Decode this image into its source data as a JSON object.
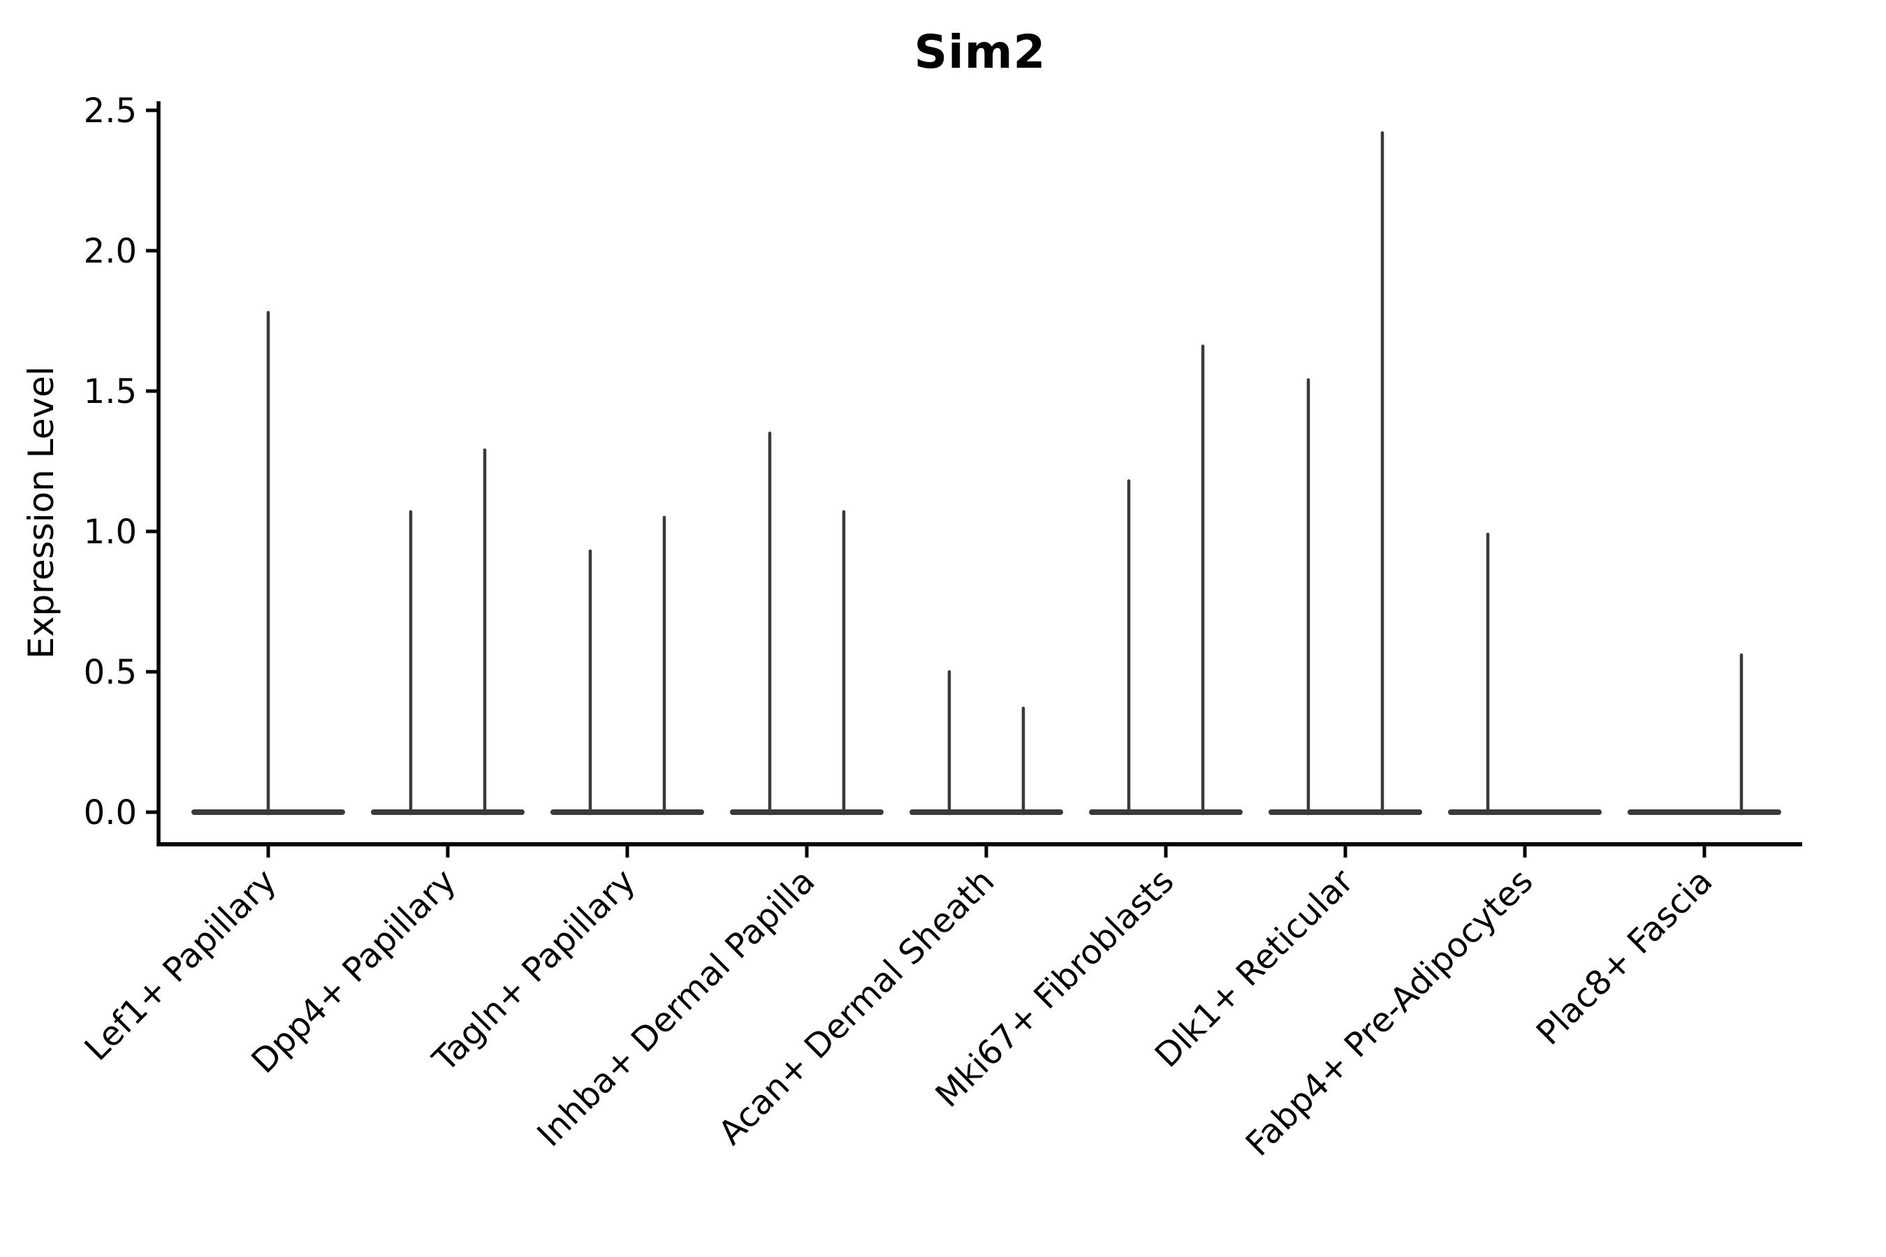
{
  "chart_data": {
    "type": "violin",
    "title": "Sim2",
    "xlabel": "",
    "ylabel": "Expression Level",
    "yticks": [
      "0.0",
      "0.5",
      "1.0",
      "1.5",
      "2.0",
      "2.5"
    ],
    "ylim": [
      0,
      2.55
    ],
    "grid": false,
    "legend": "none",
    "background": "#ffffff",
    "categories": [
      "Lef1+ Papillary",
      "Dpp4+ Papillary",
      "Tagln+ Papillary",
      "Inhba+ Dermal Papilla",
      "Acan+ Dermal Sheath",
      "Mki67+ Fibroblasts",
      "Dlk1+ Reticular",
      "Fabp4+ Pre-Adipocytes",
      "Plac8+ Fascia"
    ],
    "violins": [
      {
        "category": "Lef1+ Papillary",
        "spikes": [
          {
            "position": "center",
            "max": 1.78
          }
        ]
      },
      {
        "category": "Dpp4+ Papillary",
        "spikes": [
          {
            "position": "left",
            "max": 1.07
          },
          {
            "position": "right",
            "max": 1.29
          }
        ]
      },
      {
        "category": "Tagln+ Papillary",
        "spikes": [
          {
            "position": "left",
            "max": 0.93
          },
          {
            "position": "right",
            "max": 1.05
          }
        ]
      },
      {
        "category": "Inhba+ Dermal Papilla",
        "spikes": [
          {
            "position": "left",
            "max": 1.35
          },
          {
            "position": "right",
            "max": 1.07
          }
        ]
      },
      {
        "category": "Acan+ Dermal Sheath",
        "spikes": [
          {
            "position": "left",
            "max": 0.5
          },
          {
            "position": "right",
            "max": 0.37
          }
        ]
      },
      {
        "category": "Mki67+ Fibroblasts",
        "spikes": [
          {
            "position": "left",
            "max": 1.18
          },
          {
            "position": "right",
            "max": 1.66
          }
        ]
      },
      {
        "category": "Dlk1+ Reticular",
        "spikes": [
          {
            "position": "left",
            "max": 1.54
          },
          {
            "position": "right",
            "max": 2.42
          }
        ]
      },
      {
        "category": "Fabp4+ Pre-Adipocytes",
        "spikes": [
          {
            "position": "left",
            "max": 0.99
          }
        ]
      },
      {
        "category": "Plac8+ Fascia",
        "spikes": [
          {
            "position": "right",
            "max": 0.56
          }
        ]
      }
    ],
    "colors": {
      "violin_line": "#3a3a3a",
      "axis": "#000000",
      "text": "#000000",
      "background": "#ffffff"
    },
    "baseline_note": "all distributions collapsed at expression 0 with thin density spikes up to per-group maxima"
  }
}
